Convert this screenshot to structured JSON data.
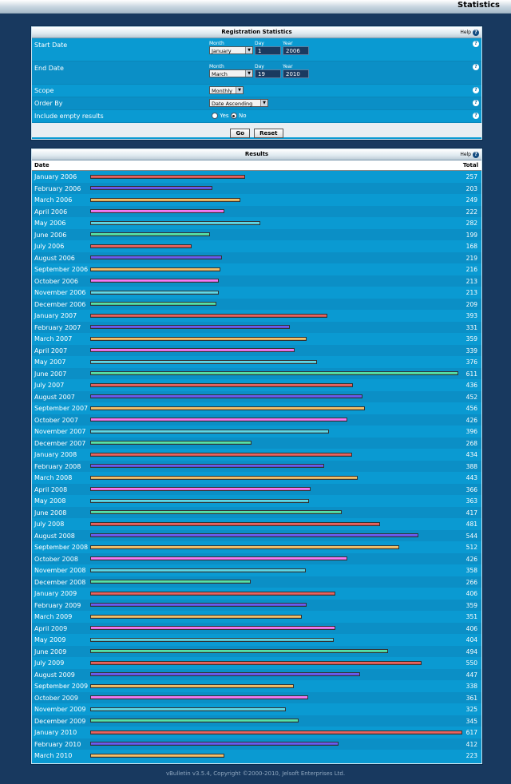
{
  "page": {
    "title": "Statistics"
  },
  "form": {
    "title": "Registration Statistics",
    "help": "Help",
    "start": {
      "label": "Start Date",
      "month_cap": "Month",
      "day_cap": "Day",
      "year_cap": "Year",
      "month": "January",
      "day": "1",
      "year": "2006"
    },
    "end": {
      "label": "End Date",
      "month_cap": "Month",
      "day_cap": "Day",
      "year_cap": "Year",
      "month": "March",
      "day": "19",
      "year": "2010"
    },
    "scope": {
      "label": "Scope",
      "value": "Monthly"
    },
    "order": {
      "label": "Order By",
      "value": "Date Ascending"
    },
    "empty": {
      "label": "Include empty results",
      "yes": "Yes",
      "no": "No",
      "selected": "No"
    },
    "go": "Go",
    "reset": "Reset"
  },
  "results": {
    "title": "Results",
    "help": "Help",
    "col_date": "Date",
    "col_total": "Total"
  },
  "colors": [
    "#e8635f",
    "#6a5cf0",
    "#f3c06a",
    "#f37af3",
    "#5fd7e6",
    "#56e0a7"
  ],
  "chart_data": {
    "type": "bar",
    "categories": [
      "January 2006",
      "February 2006",
      "March 2006",
      "April 2006",
      "May 2006",
      "June 2006",
      "July 2006",
      "August 2006",
      "September 2006",
      "October 2006",
      "November 2006",
      "December 2006",
      "January 2007",
      "February 2007",
      "March 2007",
      "April 2007",
      "May 2007",
      "June 2007",
      "July 2007",
      "August 2007",
      "September 2007",
      "October 2007",
      "November 2007",
      "December 2007",
      "January 2008",
      "February 2008",
      "March 2008",
      "April 2008",
      "May 2008",
      "June 2008",
      "July 2008",
      "August 2008",
      "September 2008",
      "October 2008",
      "November 2008",
      "December 2008",
      "January 2009",
      "February 2009",
      "March 2009",
      "April 2009",
      "May 2009",
      "June 2009",
      "July 2009",
      "August 2009",
      "September 2009",
      "October 2009",
      "November 2009",
      "December 2009",
      "January 2010",
      "February 2010",
      "March 2010"
    ],
    "values": [
      257,
      203,
      249,
      222,
      282,
      199,
      168,
      219,
      216,
      213,
      213,
      209,
      393,
      331,
      359,
      339,
      376,
      611,
      436,
      452,
      456,
      426,
      396,
      268,
      434,
      388,
      443,
      366,
      363,
      417,
      481,
      544,
      512,
      426,
      358,
      266,
      406,
      359,
      351,
      406,
      404,
      494,
      550,
      447,
      338,
      361,
      325,
      345,
      617,
      412,
      223
    ],
    "xlabel": "Date",
    "ylabel": "Total"
  },
  "footer": "vBulletin v3.5.4, Copyright ©2000-2010, Jelsoft Enterprises Ltd."
}
